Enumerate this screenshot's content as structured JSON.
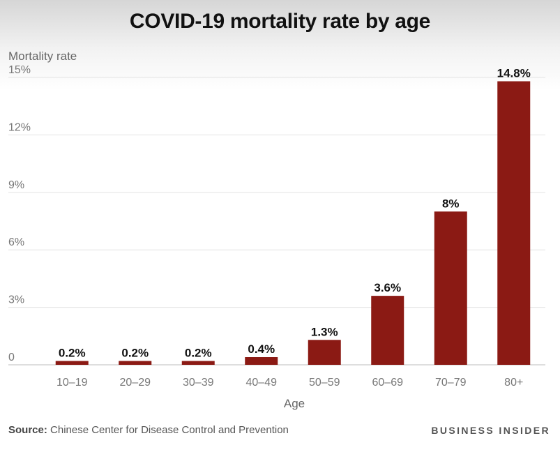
{
  "chart_data": {
    "type": "bar",
    "title": "COVID-19 mortality rate by age",
    "ylabel": "Mortality rate",
    "xlabel": "Age",
    "categories": [
      "10–19",
      "20–29",
      "30–39",
      "40–49",
      "50–59",
      "60–69",
      "70–79",
      "80+"
    ],
    "values": [
      0.2,
      0.2,
      0.2,
      0.4,
      1.3,
      3.6,
      8,
      14.8
    ],
    "value_labels": [
      "0.2%",
      "0.2%",
      "0.2%",
      "0.4%",
      "1.3%",
      "3.6%",
      "8%",
      "14.8%"
    ],
    "ylim": [
      0,
      15
    ],
    "yticks": [
      0,
      3,
      6,
      9,
      12,
      15
    ],
    "ytick_labels": [
      "0",
      "3%",
      "6%",
      "9%",
      "12%",
      "15%"
    ],
    "grid": true,
    "bar_color": "#8b1a14"
  },
  "footer": {
    "source_label": "Source:",
    "source_text": " Chinese Center for Disease Control and Prevention",
    "brand": "BUSINESS INSIDER"
  }
}
